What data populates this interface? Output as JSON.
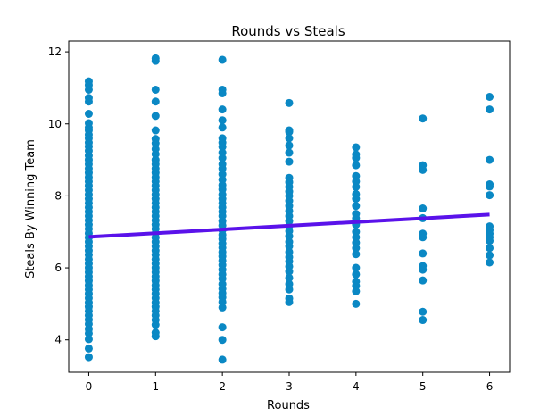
{
  "chart_data": {
    "type": "scatter",
    "title": "Rounds vs Steals",
    "xlabel": "Rounds",
    "ylabel": "Steals By Winning Team",
    "xlim": [
      -0.3,
      6.3
    ],
    "ylim": [
      3.1,
      12.3
    ],
    "xticks": [
      0,
      1,
      2,
      3,
      4,
      5,
      6
    ],
    "yticks": [
      4,
      6,
      8,
      10,
      12
    ],
    "grid": false,
    "legend": "none",
    "colors": {
      "points": "#0a88c4",
      "trendline": "#5a12ea",
      "axes": "#000000",
      "background": "#ffffff"
    },
    "series": [
      {
        "kind": "points",
        "points": [
          [
            0,
            11.18
          ],
          [
            0,
            11.08
          ],
          [
            0,
            10.95
          ],
          [
            0,
            10.72
          ],
          [
            0,
            10.62
          ],
          [
            0,
            10.28
          ],
          [
            0,
            10.02
          ],
          [
            0,
            9.9
          ],
          [
            0,
            9.82
          ],
          [
            0,
            9.7
          ],
          [
            0,
            9.6
          ],
          [
            0,
            9.48
          ],
          [
            0,
            9.37
          ],
          [
            0,
            9.25
          ],
          [
            0,
            9.12
          ],
          [
            0,
            9.0
          ],
          [
            0,
            8.88
          ],
          [
            0,
            8.76
          ],
          [
            0,
            8.64
          ],
          [
            0,
            8.52
          ],
          [
            0,
            8.4
          ],
          [
            0,
            8.28
          ],
          [
            0,
            8.16
          ],
          [
            0,
            8.04
          ],
          [
            0,
            7.92
          ],
          [
            0,
            7.8
          ],
          [
            0,
            7.68
          ],
          [
            0,
            7.56
          ],
          [
            0,
            7.44
          ],
          [
            0,
            7.32
          ],
          [
            0,
            7.2
          ],
          [
            0,
            7.08
          ],
          [
            0,
            6.96
          ],
          [
            0,
            6.84
          ],
          [
            0,
            6.72
          ],
          [
            0,
            6.6
          ],
          [
            0,
            6.48
          ],
          [
            0,
            6.36
          ],
          [
            0,
            6.24
          ],
          [
            0,
            6.12
          ],
          [
            0,
            6.0
          ],
          [
            0,
            5.88
          ],
          [
            0,
            5.76
          ],
          [
            0,
            5.64
          ],
          [
            0,
            5.52
          ],
          [
            0,
            5.4
          ],
          [
            0,
            5.28
          ],
          [
            0,
            5.16
          ],
          [
            0,
            5.04
          ],
          [
            0,
            4.92
          ],
          [
            0,
            4.8
          ],
          [
            0,
            4.68
          ],
          [
            0,
            4.56
          ],
          [
            0,
            4.44
          ],
          [
            0,
            4.3
          ],
          [
            0,
            4.18
          ],
          [
            0,
            4.02
          ],
          [
            0,
            3.76
          ],
          [
            0,
            3.52
          ],
          [
            1,
            11.82
          ],
          [
            1,
            11.75
          ],
          [
            1,
            10.95
          ],
          [
            1,
            10.62
          ],
          [
            1,
            10.22
          ],
          [
            1,
            9.82
          ],
          [
            1,
            9.58
          ],
          [
            1,
            9.46
          ],
          [
            1,
            9.3
          ],
          [
            1,
            9.16
          ],
          [
            1,
            9.0
          ],
          [
            1,
            8.88
          ],
          [
            1,
            8.76
          ],
          [
            1,
            8.64
          ],
          [
            1,
            8.52
          ],
          [
            1,
            8.4
          ],
          [
            1,
            8.28
          ],
          [
            1,
            8.16
          ],
          [
            1,
            8.04
          ],
          [
            1,
            7.92
          ],
          [
            1,
            7.8
          ],
          [
            1,
            7.68
          ],
          [
            1,
            7.56
          ],
          [
            1,
            7.44
          ],
          [
            1,
            7.32
          ],
          [
            1,
            7.2
          ],
          [
            1,
            7.08
          ],
          [
            1,
            6.96
          ],
          [
            1,
            6.84
          ],
          [
            1,
            6.72
          ],
          [
            1,
            6.6
          ],
          [
            1,
            6.48
          ],
          [
            1,
            6.36
          ],
          [
            1,
            6.24
          ],
          [
            1,
            6.12
          ],
          [
            1,
            6.0
          ],
          [
            1,
            5.88
          ],
          [
            1,
            5.76
          ],
          [
            1,
            5.64
          ],
          [
            1,
            5.52
          ],
          [
            1,
            5.4
          ],
          [
            1,
            5.28
          ],
          [
            1,
            5.16
          ],
          [
            1,
            5.04
          ],
          [
            1,
            4.92
          ],
          [
            1,
            4.8
          ],
          [
            1,
            4.68
          ],
          [
            1,
            4.55
          ],
          [
            1,
            4.42
          ],
          [
            1,
            4.2
          ],
          [
            1,
            4.1
          ],
          [
            2,
            11.78
          ],
          [
            2,
            10.95
          ],
          [
            2,
            10.85
          ],
          [
            2,
            10.4
          ],
          [
            2,
            10.1
          ],
          [
            2,
            9.9
          ],
          [
            2,
            9.6
          ],
          [
            2,
            9.48
          ],
          [
            2,
            9.36
          ],
          [
            2,
            9.2
          ],
          [
            2,
            9.05
          ],
          [
            2,
            8.88
          ],
          [
            2,
            8.76
          ],
          [
            2,
            8.6
          ],
          [
            2,
            8.45
          ],
          [
            2,
            8.3
          ],
          [
            2,
            8.18
          ],
          [
            2,
            8.04
          ],
          [
            2,
            7.92
          ],
          [
            2,
            7.8
          ],
          [
            2,
            7.68
          ],
          [
            2,
            7.56
          ],
          [
            2,
            7.44
          ],
          [
            2,
            7.3
          ],
          [
            2,
            7.18
          ],
          [
            2,
            7.05
          ],
          [
            2,
            6.92
          ],
          [
            2,
            6.8
          ],
          [
            2,
            6.68
          ],
          [
            2,
            6.56
          ],
          [
            2,
            6.44
          ],
          [
            2,
            6.32
          ],
          [
            2,
            6.2
          ],
          [
            2,
            6.08
          ],
          [
            2,
            5.95
          ],
          [
            2,
            5.82
          ],
          [
            2,
            5.7
          ],
          [
            2,
            5.55
          ],
          [
            2,
            5.42
          ],
          [
            2,
            5.3
          ],
          [
            2,
            5.18
          ],
          [
            2,
            5.05
          ],
          [
            2,
            4.9
          ],
          [
            2,
            4.35
          ],
          [
            2,
            4.0
          ],
          [
            2,
            3.45
          ],
          [
            3,
            10.58
          ],
          [
            3,
            9.82
          ],
          [
            3,
            9.78
          ],
          [
            3,
            9.6
          ],
          [
            3,
            9.4
          ],
          [
            3,
            9.2
          ],
          [
            3,
            8.95
          ],
          [
            3,
            8.5
          ],
          [
            3,
            8.38
          ],
          [
            3,
            8.25
          ],
          [
            3,
            8.12
          ],
          [
            3,
            8.0
          ],
          [
            3,
            7.86
          ],
          [
            3,
            7.72
          ],
          [
            3,
            7.58
          ],
          [
            3,
            7.44
          ],
          [
            3,
            7.3
          ],
          [
            3,
            7.16
          ],
          [
            3,
            7.02
          ],
          [
            3,
            6.88
          ],
          [
            3,
            6.72
          ],
          [
            3,
            6.6
          ],
          [
            3,
            6.44
          ],
          [
            3,
            6.3
          ],
          [
            3,
            6.18
          ],
          [
            3,
            6.04
          ],
          [
            3,
            5.9
          ],
          [
            3,
            5.72
          ],
          [
            3,
            5.55
          ],
          [
            3,
            5.4
          ],
          [
            3,
            5.15
          ],
          [
            3,
            5.05
          ],
          [
            4,
            9.35
          ],
          [
            4,
            9.15
          ],
          [
            4,
            9.05
          ],
          [
            4,
            8.85
          ],
          [
            4,
            8.55
          ],
          [
            4,
            8.4
          ],
          [
            4,
            8.25
          ],
          [
            4,
            8.05
          ],
          [
            4,
            7.92
          ],
          [
            4,
            7.72
          ],
          [
            4,
            7.5
          ],
          [
            4,
            7.38
          ],
          [
            4,
            7.2
          ],
          [
            4,
            7.0
          ],
          [
            4,
            6.85
          ],
          [
            4,
            6.7
          ],
          [
            4,
            6.55
          ],
          [
            4,
            6.38
          ],
          [
            4,
            6.0
          ],
          [
            4,
            5.82
          ],
          [
            4,
            5.62
          ],
          [
            4,
            5.5
          ],
          [
            4,
            5.35
          ],
          [
            4,
            5.0
          ],
          [
            5,
            10.15
          ],
          [
            5,
            8.85
          ],
          [
            5,
            8.72
          ],
          [
            5,
            7.65
          ],
          [
            5,
            7.38
          ],
          [
            5,
            6.95
          ],
          [
            5,
            6.85
          ],
          [
            5,
            6.4
          ],
          [
            5,
            6.05
          ],
          [
            5,
            5.95
          ],
          [
            5,
            5.65
          ],
          [
            5,
            4.78
          ],
          [
            5,
            4.55
          ],
          [
            6,
            10.75
          ],
          [
            6,
            10.4
          ],
          [
            6,
            9.0
          ],
          [
            6,
            8.32
          ],
          [
            6,
            8.26
          ],
          [
            6,
            8.02
          ],
          [
            6,
            7.15
          ],
          [
            6,
            7.05
          ],
          [
            6,
            6.95
          ],
          [
            6,
            6.85
          ],
          [
            6,
            6.75
          ],
          [
            6,
            6.55
          ],
          [
            6,
            6.35
          ],
          [
            6,
            6.15
          ]
        ]
      },
      {
        "kind": "trendline",
        "x": [
          0,
          6
        ],
        "y": [
          6.86,
          7.48
        ]
      }
    ]
  }
}
